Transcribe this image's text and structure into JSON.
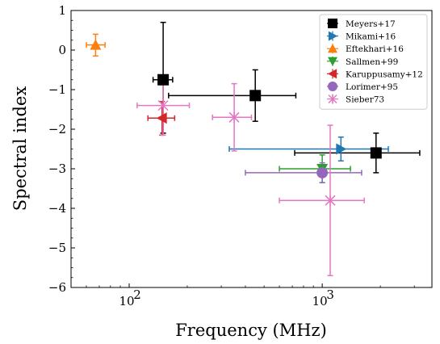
{
  "chart_data": {
    "type": "scatter",
    "xlabel": "Frequency (MHz)",
    "ylabel": "Spectral index",
    "xscale": "log",
    "xlim": [
      50,
      3700
    ],
    "ylim": [
      -6,
      1
    ],
    "x_ticks": [
      {
        "value": 100,
        "label": "10",
        "exp": "2"
      },
      {
        "value": 1000,
        "label": "10",
        "exp": "3"
      }
    ],
    "y_ticks": [
      {
        "value": 1,
        "label": "1"
      },
      {
        "value": 0,
        "label": "0"
      },
      {
        "value": -1,
        "label": "−1"
      },
      {
        "value": -2,
        "label": "−2"
      },
      {
        "value": -3,
        "label": "−3"
      },
      {
        "value": -4,
        "label": "−4"
      },
      {
        "value": -5,
        "label": "−5"
      },
      {
        "value": -6,
        "label": "−6"
      }
    ],
    "legend_position": "upper right",
    "series": [
      {
        "name": "Meyers+17",
        "color": "#000000",
        "marker": "square",
        "points": [
          {
            "x": 150,
            "x_lo": 133,
            "x_hi": 168,
            "y": -0.75,
            "y_lo": -2.1,
            "y_hi": 0.7
          },
          {
            "x": 450,
            "x_lo": 160,
            "x_hi": 730,
            "y": -1.15,
            "y_lo": -1.8,
            "y_hi": -0.5
          },
          {
            "x": 1900,
            "x_lo": 720,
            "x_hi": 3200,
            "y": -2.6,
            "y_lo": -3.1,
            "y_hi": -2.1
          }
        ]
      },
      {
        "name": "Mikami+16",
        "color": "#1f77b4",
        "marker": "triangle-right",
        "points": [
          {
            "x": 1250,
            "x_lo": 330,
            "x_hi": 2200,
            "y": -2.5,
            "y_lo": -2.8,
            "y_hi": -2.2
          }
        ]
      },
      {
        "name": "Eftekhari+16",
        "color": "#ff7f0e",
        "marker": "triangle-up",
        "points": [
          {
            "x": 67,
            "x_lo": 60,
            "x_hi": 75,
            "y": 0.13,
            "y_lo": -0.15,
            "y_hi": 0.4
          }
        ]
      },
      {
        "name": "Sallmen+99",
        "color": "#2ca02c",
        "marker": "triangle-down",
        "points": [
          {
            "x": 1000,
            "x_lo": 600,
            "x_hi": 1400,
            "y": -3.0,
            "y_lo": -3.35,
            "y_hi": -2.65
          }
        ]
      },
      {
        "name": "Karuppusamy+12",
        "color": "#d62728",
        "marker": "triangle-left",
        "points": [
          {
            "x": 148,
            "x_lo": 125,
            "x_hi": 172,
            "y": -1.72,
            "y_lo": -2.15,
            "y_hi": -1.3
          }
        ]
      },
      {
        "name": "Lorimer+95",
        "color": "#9467bd",
        "marker": "circle",
        "points": [
          {
            "x": 1000,
            "x_lo": 400,
            "x_hi": 1600,
            "y": -3.1,
            "y_lo": -3.35,
            "y_hi": -2.85
          }
        ]
      },
      {
        "name": "Sieber73",
        "color": "#e377c2",
        "marker": "x",
        "points": [
          {
            "x": 150,
            "x_lo": 110,
            "x_hi": 205,
            "y": -1.4,
            "y_lo": -2.15,
            "y_hi": -0.65
          },
          {
            "x": 350,
            "x_lo": 270,
            "x_hi": 430,
            "y": -1.7,
            "y_lo": -2.55,
            "y_hi": -0.85
          },
          {
            "x": 1100,
            "x_lo": 600,
            "x_hi": 1650,
            "y": -3.8,
            "y_lo": -5.7,
            "y_hi": -1.9
          }
        ]
      }
    ]
  }
}
